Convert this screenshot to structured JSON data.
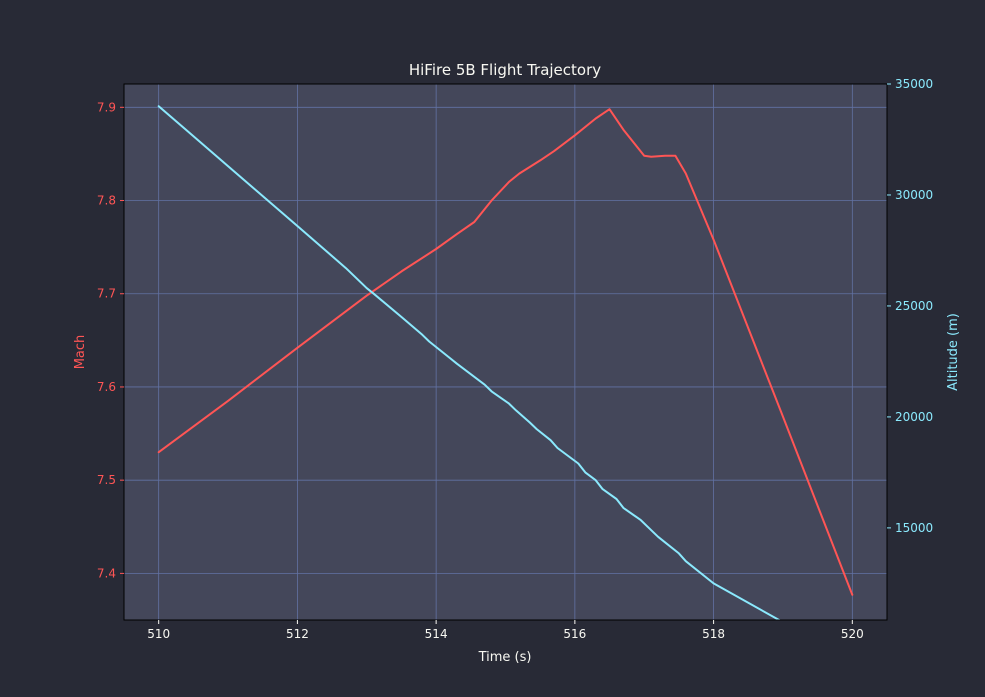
{
  "chart_data": {
    "type": "line",
    "title": "HiFire 5B Flight Trajectory",
    "xlabel": "Time (s)",
    "ylabel_left": "Mach",
    "ylabel_right": "Altitude (m)",
    "xlim": [
      509.5,
      520.5
    ],
    "ylim_left": [
      7.35,
      7.925
    ],
    "ylim_right": [
      10850,
      35000
    ],
    "x_ticks": [
      510,
      512,
      514,
      516,
      518,
      520
    ],
    "y_ticks_left": [
      7.4,
      7.5,
      7.6,
      7.7,
      7.8,
      7.9
    ],
    "y_ticks_right": [
      15000,
      20000,
      25000,
      30000,
      35000
    ],
    "grid": true,
    "colors": {
      "figure_bg": "#282a36",
      "axes_bg": "#44475a",
      "grid": "#6272a4",
      "mach": "#ff5555",
      "altitude": "#8be9fd",
      "text": "#f8f8f2"
    },
    "series": [
      {
        "axis": "left",
        "x": [
          510.0,
          511.0,
          512.0,
          513.0,
          513.5,
          514.0,
          514.3,
          514.55,
          514.8,
          515.05,
          515.2,
          515.5,
          515.7,
          516.0,
          516.3,
          516.5,
          516.7,
          517.0,
          517.1,
          517.3,
          517.45,
          517.6,
          518.0,
          519.0,
          520.0
        ],
        "y": [
          7.53,
          7.585,
          7.642,
          7.698,
          7.724,
          7.748,
          7.764,
          7.777,
          7.8,
          7.82,
          7.829,
          7.843,
          7.853,
          7.87,
          7.888,
          7.898,
          7.876,
          7.848,
          7.847,
          7.848,
          7.848,
          7.829,
          7.758,
          7.568,
          7.377
        ]
      },
      {
        "axis": "right",
        "x": [
          510.0,
          511.0,
          512.0,
          512.7,
          513.0,
          513.1,
          513.5,
          513.8,
          513.9,
          514.2,
          514.3,
          514.7,
          514.8,
          515.05,
          515.15,
          515.35,
          515.45,
          515.65,
          515.75,
          516.05,
          516.15,
          516.3,
          516.4,
          516.6,
          516.7,
          516.95,
          517.05,
          517.2,
          517.3,
          517.5,
          517.6,
          518.0,
          519.0,
          520.0
        ],
        "y": [
          34000,
          31300,
          28600,
          26700,
          25800,
          25550,
          24500,
          23700,
          23400,
          22650,
          22400,
          21450,
          21150,
          20600,
          20300,
          19750,
          19450,
          18950,
          18600,
          17900,
          17500,
          17150,
          16750,
          16300,
          15900,
          15350,
          15050,
          14600,
          14350,
          13850,
          13500,
          12500,
          10750,
          8950
        ]
      }
    ]
  }
}
